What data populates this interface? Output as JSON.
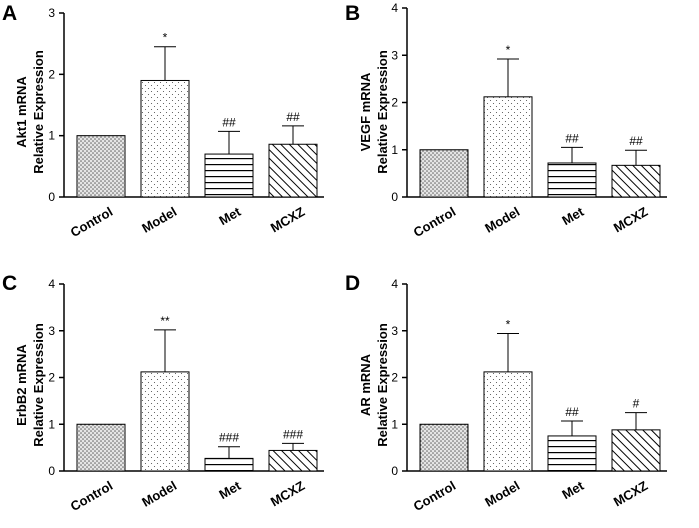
{
  "colors": {
    "ink": "#000000",
    "bar_fill": "#ffffff"
  },
  "chart_data": [
    {
      "type": "bar",
      "panel": "A",
      "title": "",
      "xlabel": "",
      "ylabel_lines": [
        "Akt1 mRNA",
        "Relative Expression"
      ],
      "categories": [
        "Control",
        "Model",
        "Met",
        "MCXZ"
      ],
      "values": [
        1.0,
        1.9,
        0.7,
        0.86
      ],
      "errors": [
        0,
        0.55,
        0.37,
        0.3
      ],
      "annotations": [
        "",
        "*",
        "##",
        "##"
      ],
      "patterns": [
        "crosshatch",
        "dots",
        "horizontal",
        "diagonal"
      ],
      "ylim": [
        0,
        3
      ],
      "yticks": [
        0,
        1,
        2,
        3
      ]
    },
    {
      "type": "bar",
      "panel": "B",
      "title": "",
      "xlabel": "",
      "ylabel_lines": [
        "VEGF mRNA",
        "Relative Expression"
      ],
      "categories": [
        "Control",
        "Model",
        "Met",
        "MCXZ"
      ],
      "values": [
        1.0,
        2.12,
        0.72,
        0.67
      ],
      "errors": [
        0,
        0.8,
        0.33,
        0.32
      ],
      "annotations": [
        "",
        "*",
        "##",
        "##"
      ],
      "patterns": [
        "crosshatch",
        "dots",
        "horizontal",
        "diagonal"
      ],
      "ylim": [
        0,
        4
      ],
      "yticks": [
        0,
        1,
        2,
        3,
        4
      ]
    },
    {
      "type": "bar",
      "panel": "C",
      "title": "",
      "xlabel": "",
      "ylabel_lines": [
        "ErbB2 mRNA",
        "Relative Expression"
      ],
      "categories": [
        "Control",
        "Model",
        "Met",
        "MCXZ"
      ],
      "values": [
        1.0,
        2.12,
        0.27,
        0.44
      ],
      "errors": [
        0,
        0.9,
        0.25,
        0.15
      ],
      "annotations": [
        "",
        "**",
        "###",
        "###"
      ],
      "patterns": [
        "crosshatch",
        "dots",
        "horizontal",
        "diagonal"
      ],
      "ylim": [
        0,
        4
      ],
      "yticks": [
        0,
        1,
        2,
        3,
        4
      ]
    },
    {
      "type": "bar",
      "panel": "D",
      "title": "",
      "xlabel": "",
      "ylabel_lines": [
        "AR mRNA",
        "Relative Expression"
      ],
      "categories": [
        "Control",
        "Model",
        "Met",
        "MCXZ"
      ],
      "values": [
        1.0,
        2.12,
        0.75,
        0.88
      ],
      "errors": [
        0,
        0.82,
        0.32,
        0.37
      ],
      "annotations": [
        "",
        "*",
        "##",
        "#"
      ],
      "patterns": [
        "crosshatch",
        "dots",
        "horizontal",
        "diagonal"
      ],
      "ylim": [
        0,
        4
      ],
      "yticks": [
        0,
        1,
        2,
        3,
        4
      ]
    }
  ]
}
